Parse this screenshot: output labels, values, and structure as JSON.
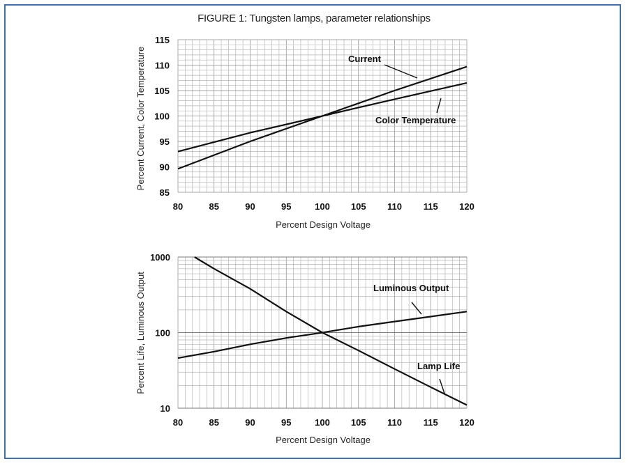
{
  "figure": {
    "title": "FIGURE 1: Tungsten lamps, parameter relationships"
  },
  "chart_data": [
    {
      "type": "line",
      "title": "",
      "xlabel": "Percent Design Voltage",
      "ylabel": "Percent Current, Color Temperature",
      "xlim": [
        80,
        120
      ],
      "ylim": [
        85,
        115
      ],
      "xticks": [
        "80",
        "85",
        "90",
        "95",
        "100",
        "105",
        "110",
        "115",
        "120"
      ],
      "yticks": [
        "115",
        "110",
        "105",
        "100",
        "95",
        "90",
        "85"
      ],
      "grid": true,
      "series": [
        {
          "name": "Current",
          "x": [
            80,
            90,
            100,
            110,
            120
          ],
          "y": [
            89.6,
            95.0,
            100.0,
            105.0,
            109.7
          ]
        },
        {
          "name": "Color Temperature",
          "x": [
            80,
            90,
            100,
            110,
            120
          ],
          "y": [
            93.0,
            96.7,
            100.0,
            103.3,
            106.5
          ]
        }
      ]
    },
    {
      "type": "line",
      "title": "",
      "xlabel": "Percent Design Voltage",
      "ylabel": "Percent Life, Luminous Output",
      "xlim": [
        80,
        120
      ],
      "ylim": [
        10,
        1000
      ],
      "yscale": "log",
      "xticks": [
        "80",
        "85",
        "90",
        "95",
        "100",
        "105",
        "110",
        "115",
        "120"
      ],
      "yticks": [
        "1000",
        "100",
        "10"
      ],
      "grid": true,
      "series": [
        {
          "name": "Lamp Life",
          "x": [
            82.3,
            85,
            90,
            95,
            100,
            105,
            110,
            115,
            120
          ],
          "y": [
            1000,
            700,
            380,
            190,
            100,
            58,
            33,
            19,
            11
          ]
        },
        {
          "name": "Luminous Output",
          "x": [
            80,
            85,
            90,
            95,
            100,
            105,
            110,
            115,
            120
          ],
          "y": [
            46,
            56,
            70,
            85,
            100,
            120,
            140,
            163,
            190
          ]
        }
      ]
    }
  ]
}
